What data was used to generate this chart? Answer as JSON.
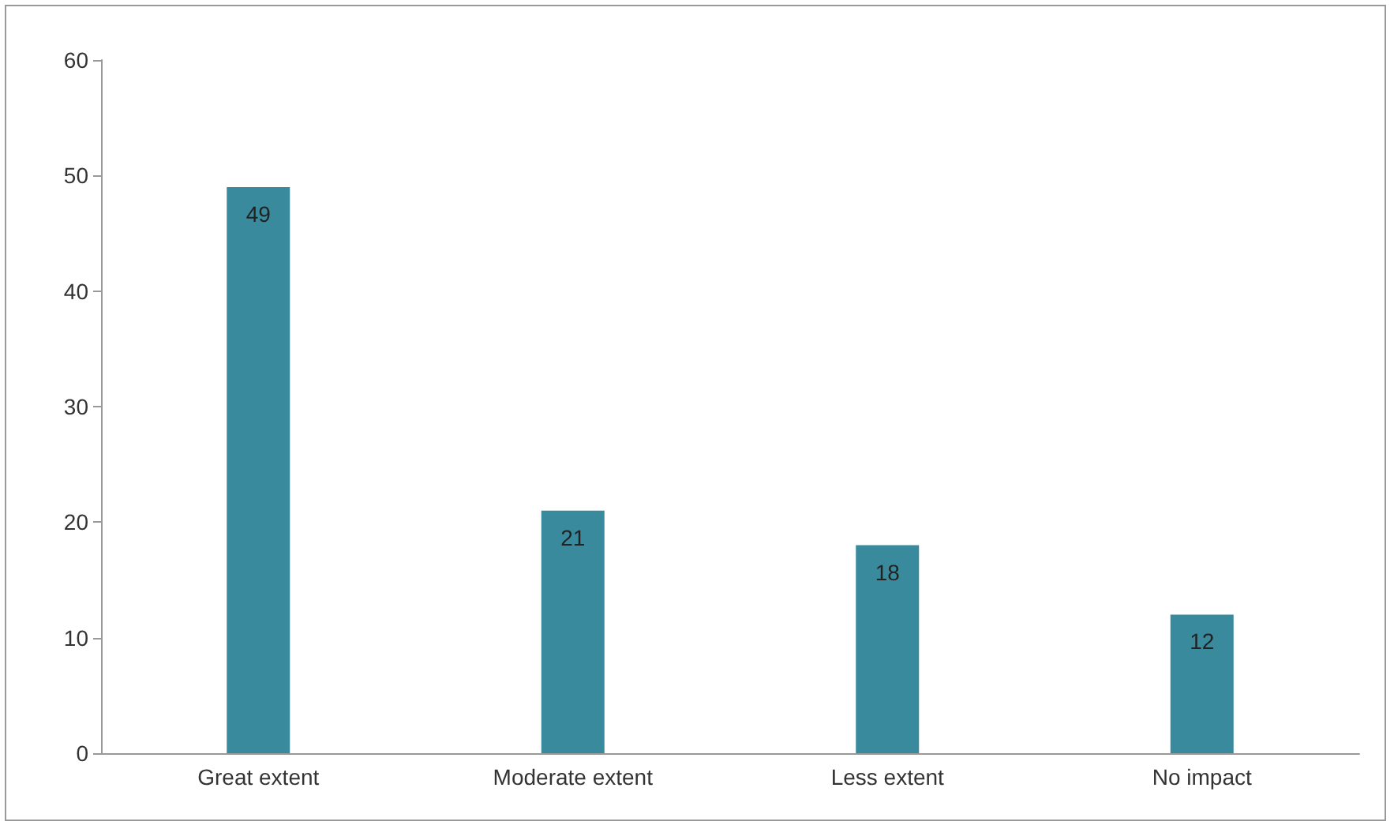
{
  "chart_data": {
    "type": "bar",
    "categories": [
      "Great extent",
      "Moderate extent",
      "Less extent",
      "No impact"
    ],
    "values": [
      49,
      21,
      18,
      12
    ],
    "color": "#3a8a9e",
    "ylim": [
      0,
      60
    ],
    "yticks": [
      0,
      10,
      20,
      30,
      40,
      50,
      60
    ],
    "grid": false,
    "data_labels": true
  }
}
